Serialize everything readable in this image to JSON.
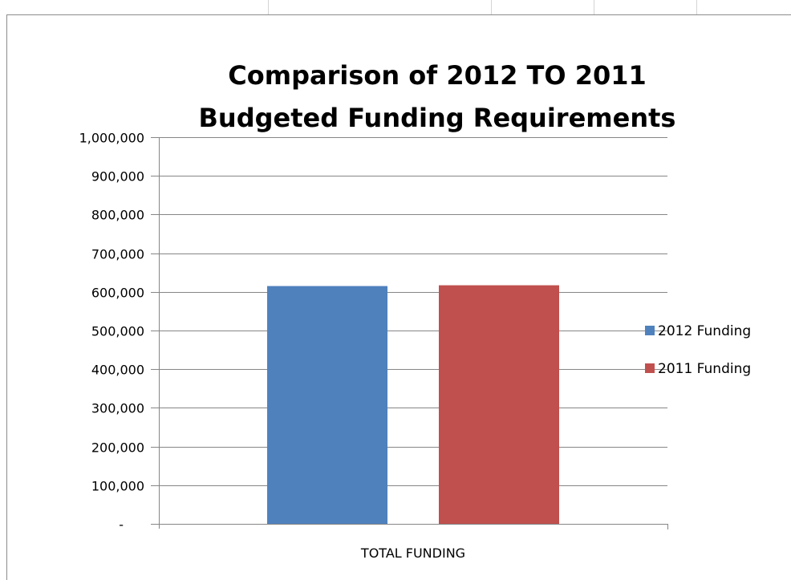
{
  "chart_data": {
    "type": "bar",
    "title": "Comparison of 2012 TO 2011 Budgeted Funding Requirements",
    "title_lines": [
      "Comparison of 2012 TO 2011",
      "Budgeted Funding Requirements"
    ],
    "categories": [
      "TOTAL FUNDING"
    ],
    "series": [
      {
        "name": "2012 Funding",
        "values": [
          615000
        ],
        "color": "#4f81bd"
      },
      {
        "name": "2011 Funding",
        "values": [
          617000
        ],
        "color": "#c0504d"
      }
    ],
    "ylim": [
      0,
      1000000
    ],
    "y_ticks": [
      {
        "value": 0,
        "label": "-"
      },
      {
        "value": 100000,
        "label": "100,000"
      },
      {
        "value": 200000,
        "label": "200,000"
      },
      {
        "value": 300000,
        "label": "300,000"
      },
      {
        "value": 400000,
        "label": "400,000"
      },
      {
        "value": 500000,
        "label": "500,000"
      },
      {
        "value": 600000,
        "label": "600,000"
      },
      {
        "value": 700000,
        "label": "700,000"
      },
      {
        "value": 800000,
        "label": "800,000"
      },
      {
        "value": 900000,
        "label": "900,000"
      },
      {
        "value": 1000000,
        "label": "1,000,000"
      }
    ],
    "grid": true,
    "legend_position": "right",
    "gridline_color": "#868686"
  }
}
